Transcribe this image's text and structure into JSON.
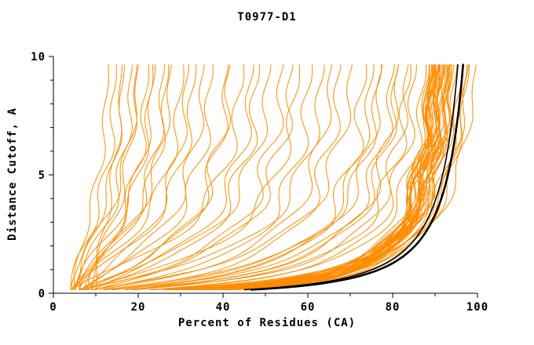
{
  "chart_data": {
    "type": "line",
    "title": "T0977-D1",
    "xlabel": "Percent of Residues (CA)",
    "ylabel": "Distance Cutoff, A",
    "xlim": [
      0,
      100
    ],
    "ylim": [
      0,
      10
    ],
    "xticks": [
      0,
      20,
      40,
      60,
      80,
      100
    ],
    "yticks": [
      0,
      5,
      10
    ],
    "x_minor_ticks": [
      10,
      30,
      50,
      70,
      90
    ],
    "y_minor_ticks": [
      1,
      2,
      3,
      4,
      6,
      7,
      8,
      9
    ],
    "grid": false,
    "legend": "none",
    "colors": {
      "model_curves": "#ff8c00",
      "reference_curves": "#000000"
    },
    "curve_model": "y = a*((x-x0)/(x1-x))^b, sampled for y in [0.15, 9.65], with wiggle amplitude w and phase ph",
    "curve_param_format": [
      "x0",
      "x1",
      "a",
      "b",
      "w",
      "ph"
    ],
    "model_curves": [
      [
        3,
        94,
        0.35,
        1.1,
        1.2,
        0.5
      ],
      [
        4,
        96,
        0.3,
        1.2,
        1.5,
        1.2
      ],
      [
        5,
        97,
        0.4,
        1.15,
        1.0,
        2.0
      ],
      [
        4,
        95,
        0.25,
        1.3,
        1.8,
        2.6
      ],
      [
        6,
        98,
        0.45,
        1.05,
        1.3,
        3.1
      ],
      [
        5,
        99,
        0.32,
        1.25,
        1.1,
        0.9
      ],
      [
        4,
        93,
        0.38,
        1.1,
        1.6,
        1.7
      ],
      [
        5,
        96,
        0.28,
        1.35,
        1.2,
        2.3
      ],
      [
        6,
        97,
        0.5,
        1.0,
        1.4,
        0.2
      ],
      [
        4,
        98,
        0.36,
        1.2,
        1.0,
        2.9
      ],
      [
        5,
        95,
        0.42,
        1.12,
        1.7,
        1.0
      ],
      [
        3,
        97,
        0.3,
        1.28,
        1.3,
        1.5
      ],
      [
        6,
        99,
        0.34,
        1.18,
        1.1,
        2.2
      ],
      [
        5,
        94,
        0.46,
        1.05,
        1.5,
        0.7
      ],
      [
        4,
        96,
        0.27,
        1.4,
        1.2,
        1.9
      ],
      [
        5,
        98,
        0.38,
        1.15,
        1.0,
        2.7
      ],
      [
        6,
        96,
        0.44,
        1.08,
        1.6,
        0.4
      ],
      [
        4,
        97,
        0.31,
        1.3,
        1.3,
        1.1
      ],
      [
        5,
        99,
        0.36,
        1.2,
        1.1,
        1.8
      ],
      [
        3,
        95,
        0.4,
        1.1,
        1.4,
        2.5
      ],
      [
        5,
        97,
        0.26,
        1.38,
        1.2,
        0.6
      ],
      [
        6,
        98,
        0.48,
        1.02,
        1.5,
        1.4
      ],
      [
        4,
        94,
        0.33,
        1.22,
        1.0,
        2.1
      ],
      [
        5,
        96,
        0.39,
        1.14,
        1.7,
        2.8
      ],
      [
        4,
        98,
        0.29,
        1.33,
        1.2,
        0.8
      ],
      [
        6,
        97,
        0.43,
        1.1,
        1.3,
        1.6
      ],
      [
        5,
        95,
        0.35,
        1.2,
        1.1,
        2.4
      ],
      [
        4,
        99,
        0.37,
        1.16,
        1.5,
        0.3
      ],
      [
        5,
        96,
        0.24,
        1.42,
        1.2,
        1.3
      ],
      [
        6,
        94,
        0.41,
        1.12,
        1.4,
        2.0
      ],
      [
        8,
        97,
        0.55,
        0.95,
        1.2,
        2.6
      ],
      [
        7,
        98,
        0.6,
        0.9,
        1.5,
        0.5
      ],
      [
        9,
        99,
        0.52,
        1.0,
        1.1,
        1.2
      ],
      [
        7,
        96,
        0.58,
        0.92,
        1.3,
        1.9
      ],
      [
        8,
        95,
        0.5,
        1.05,
        1.6,
        2.7
      ],
      [
        4,
        88,
        0.7,
        0.9,
        1.8,
        0.4
      ],
      [
        5,
        85,
        0.9,
        0.85,
        2.0,
        1.1
      ],
      [
        6,
        82,
        1.1,
        0.8,
        1.7,
        1.8
      ],
      [
        4,
        78,
        0.8,
        0.9,
        2.2,
        2.5
      ],
      [
        5,
        75,
        1.3,
        0.75,
        1.9,
        0.2
      ],
      [
        6,
        72,
        1.0,
        0.85,
        2.1,
        0.9
      ],
      [
        4,
        68,
        1.5,
        0.7,
        1.8,
        1.6
      ],
      [
        5,
        65,
        1.2,
        0.8,
        2.0,
        2.3
      ],
      [
        6,
        62,
        1.7,
        0.68,
        1.7,
        3.0
      ],
      [
        4,
        58,
        1.4,
        0.75,
        2.2,
        0.6
      ],
      [
        5,
        55,
        1.9,
        0.65,
        1.9,
        1.3
      ],
      [
        6,
        52,
        1.6,
        0.72,
        2.1,
        2.0
      ],
      [
        4,
        48,
        2.1,
        0.6,
        1.8,
        2.7
      ],
      [
        5,
        45,
        1.8,
        0.7,
        2.0,
        0.4
      ],
      [
        7,
        86,
        0.85,
        0.88,
        1.9,
        1.0
      ],
      [
        8,
        80,
        1.05,
        0.82,
        1.7,
        1.7
      ],
      [
        6,
        89,
        0.75,
        0.92,
        2.0,
        2.4
      ],
      [
        7,
        70,
        1.25,
        0.78,
        1.8,
        0.1
      ],
      [
        8,
        60,
        1.55,
        0.7,
        2.1,
        0.8
      ],
      [
        9,
        50,
        1.95,
        0.62,
        1.9,
        1.5
      ],
      [
        4,
        36,
        2.3,
        0.58,
        1.5,
        2.2
      ],
      [
        5,
        33,
        2.6,
        0.55,
        1.4,
        2.9
      ],
      [
        6,
        30,
        2.9,
        0.52,
        1.3,
        0.5
      ],
      [
        4,
        28,
        2.4,
        0.56,
        1.5,
        1.2
      ],
      [
        5,
        26,
        3.2,
        0.5,
        1.2,
        1.9
      ],
      [
        6,
        24,
        2.8,
        0.54,
        1.4,
        2.6
      ],
      [
        4,
        22,
        3.5,
        0.48,
        1.1,
        0.3
      ],
      [
        5,
        20,
        3.0,
        0.52,
        1.3,
        1.0
      ],
      [
        6,
        18,
        3.8,
        0.45,
        1.0,
        1.7
      ],
      [
        4,
        16,
        3.3,
        0.5,
        1.2,
        2.4
      ],
      [
        5,
        14,
        4.0,
        0.44,
        0.9,
        3.0
      ],
      [
        7,
        38,
        2.2,
        0.6,
        1.6,
        0.7
      ],
      [
        8,
        34,
        2.5,
        0.56,
        1.5,
        1.4
      ],
      [
        7,
        29,
        2.85,
        0.52,
        1.3,
        2.1
      ],
      [
        8,
        25,
        3.15,
        0.5,
        1.2,
        2.8
      ],
      [
        9,
        21,
        3.6,
        0.46,
        1.1,
        0.6
      ],
      [
        10,
        17,
        4.2,
        0.42,
        0.9,
        1.3
      ],
      [
        6,
        40,
        2.0,
        0.62,
        1.7,
        2.0
      ],
      [
        7,
        44,
        1.85,
        0.66,
        1.8,
        0.9
      ],
      [
        9,
        90,
        0.65,
        0.95,
        1.9,
        1.6
      ],
      [
        10,
        92,
        0.7,
        0.9,
        1.6,
        2.3
      ],
      [
        12,
        86,
        0.95,
        0.85,
        1.8,
        0.0
      ],
      [
        14,
        82,
        1.15,
        0.8,
        1.7,
        0.7
      ],
      [
        5,
        104,
        0.4,
        1.2,
        1.0,
        1.8
      ],
      [
        6,
        105,
        0.35,
        1.3,
        1.1,
        0.9
      ],
      [
        4,
        103,
        0.45,
        1.15,
        1.2,
        2.5
      ],
      [
        7,
        106,
        0.5,
        1.1,
        1.0,
        0.2
      ],
      [
        5,
        102,
        0.3,
        1.35,
        1.3,
        1.5
      ],
      [
        6,
        104,
        0.55,
        1.05,
        1.1,
        2.2
      ]
    ],
    "reference_curves": [
      [
        13,
        103,
        0.3,
        1.35,
        0,
        0
      ],
      [
        15,
        101.5,
        0.34,
        1.3,
        0,
        0
      ]
    ]
  }
}
